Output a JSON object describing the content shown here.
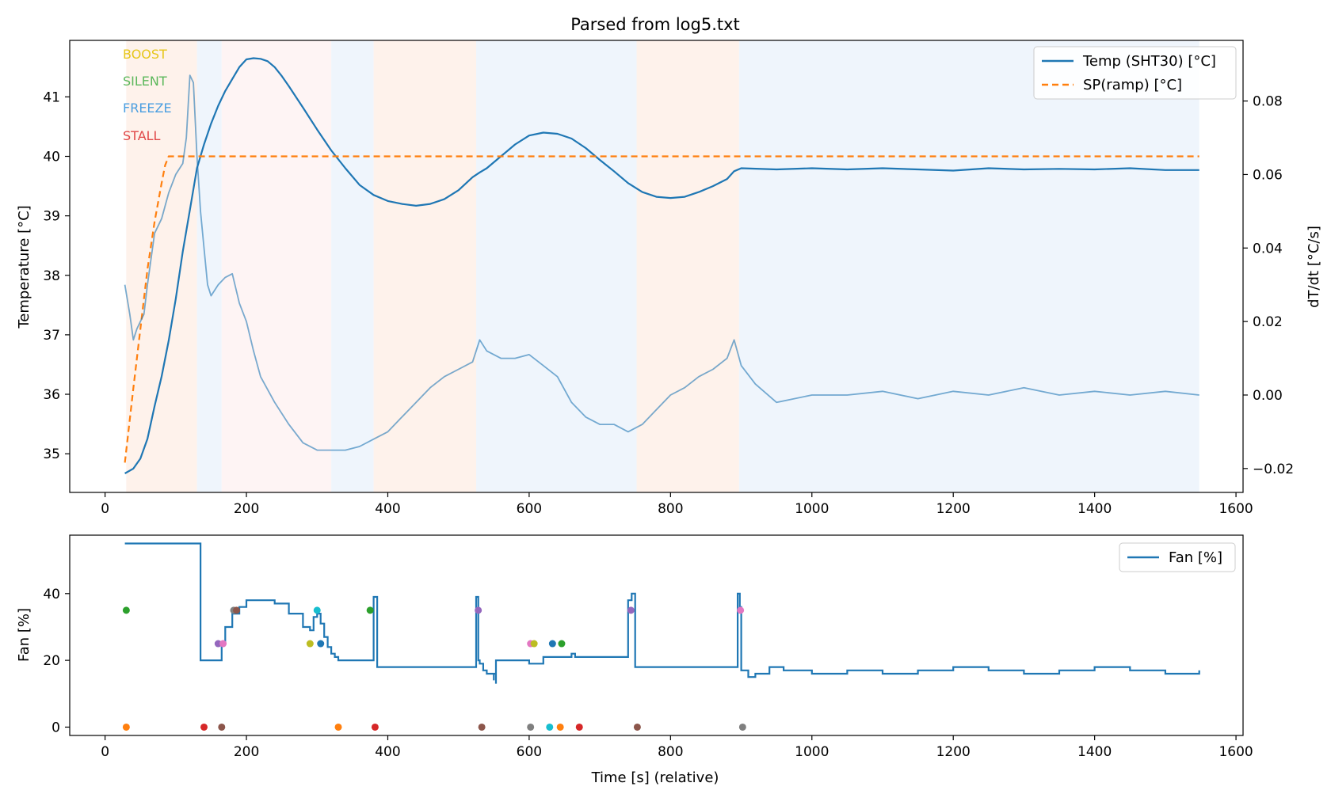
{
  "chart_data": [
    {
      "type": "line",
      "title": "Parsed from log5.txt",
      "ylabel": "Temperature [°C]",
      "y2label": "dT/dt [°C/s]",
      "xlim": [
        -50,
        1610
      ],
      "ylim": [
        34.35,
        41.95
      ],
      "y2lim": [
        -0.0265,
        0.0965
      ],
      "x_ticks": [
        0,
        200,
        400,
        600,
        800,
        1000,
        1200,
        1400,
        1600
      ],
      "y_ticks": [
        35,
        36,
        37,
        38,
        39,
        40,
        41
      ],
      "y2_ticks": [
        -0.02,
        0.0,
        0.02,
        0.04,
        0.06,
        0.08
      ],
      "y2_tick_labels": [
        "−0.02",
        "0.00",
        "0.02",
        "0.04",
        "0.06",
        "0.08"
      ],
      "legend_position": "top-right",
      "mode_labels": [
        {
          "text": "BOOST",
          "color": "#e6c619"
        },
        {
          "text": "SILENT",
          "color": "#5cb85c"
        },
        {
          "text": "FREEZE",
          "color": "#4a9ee0"
        },
        {
          "text": "STALL",
          "color": "#e04848"
        }
      ],
      "mode_bands": [
        {
          "start": 30,
          "end": 130,
          "mode": "BOOST",
          "color": "#fdeee4"
        },
        {
          "start": 130,
          "end": 165,
          "mode": "FREEZE",
          "color": "#e9f1fb"
        },
        {
          "start": 165,
          "end": 320,
          "mode": "STALL",
          "color": "#fdf0f0"
        },
        {
          "start": 320,
          "end": 380,
          "mode": "FREEZE",
          "color": "#e9f1fb"
        },
        {
          "start": 380,
          "end": 525,
          "mode": "BOOST",
          "color": "#fdeee4"
        },
        {
          "start": 525,
          "end": 752,
          "mode": "FREEZE",
          "color": "#e9f1fb"
        },
        {
          "start": 752,
          "end": 897,
          "mode": "BOOST",
          "color": "#fdeee4"
        },
        {
          "start": 897,
          "end": 1548,
          "mode": "FREEZE",
          "color": "#e9f1fb"
        }
      ],
      "series": [
        {
          "name": "Temp (SHT30) [°C]",
          "axis": "left",
          "color": "#1f77b4",
          "style": "solid",
          "x": [
            28,
            40,
            50,
            60,
            70,
            80,
            90,
            100,
            110,
            120,
            130,
            140,
            150,
            160,
            170,
            180,
            190,
            200,
            210,
            220,
            230,
            240,
            250,
            260,
            280,
            300,
            320,
            340,
            360,
            380,
            400,
            420,
            440,
            460,
            480,
            500,
            520,
            530,
            540,
            560,
            580,
            600,
            620,
            640,
            660,
            680,
            700,
            720,
            740,
            760,
            780,
            800,
            820,
            840,
            860,
            880,
            890,
            900,
            950,
            1000,
            1050,
            1100,
            1150,
            1200,
            1250,
            1300,
            1350,
            1400,
            1450,
            1500,
            1548
          ],
          "y": [
            34.67,
            34.75,
            34.92,
            35.25,
            35.8,
            36.3,
            36.9,
            37.6,
            38.4,
            39.1,
            39.8,
            40.2,
            40.55,
            40.85,
            41.1,
            41.3,
            41.5,
            41.63,
            41.65,
            41.64,
            41.6,
            41.5,
            41.35,
            41.18,
            40.82,
            40.45,
            40.1,
            39.8,
            39.52,
            39.35,
            39.25,
            39.2,
            39.17,
            39.2,
            39.28,
            39.43,
            39.65,
            39.73,
            39.8,
            40.0,
            40.2,
            40.35,
            40.4,
            40.38,
            40.3,
            40.14,
            39.94,
            39.75,
            39.55,
            39.4,
            39.32,
            39.3,
            39.32,
            39.4,
            39.5,
            39.62,
            39.75,
            39.8,
            39.78,
            39.8,
            39.78,
            39.8,
            39.78,
            39.76,
            39.8,
            39.78,
            39.79,
            39.78,
            39.8,
            39.77,
            39.77
          ]
        },
        {
          "name": "SP(ramp) [°C]",
          "axis": "left",
          "color": "#ff7f0e",
          "style": "dashed",
          "x": [
            28,
            40,
            50,
            60,
            70,
            80,
            85,
            90,
            100,
            200,
            400,
            600,
            800,
            1000,
            1200,
            1400,
            1548
          ],
          "y": [
            34.85,
            36.1,
            37.1,
            38.1,
            38.9,
            39.55,
            39.85,
            40.0,
            40.0,
            40.0,
            40.0,
            40.0,
            40.0,
            40.0,
            40.0,
            40.0,
            40.0
          ]
        },
        {
          "name": "dT/dt",
          "axis": "right",
          "color": "#1f77b4",
          "opacity": 0.6,
          "style": "solid",
          "x": [
            28,
            35,
            40,
            45,
            50,
            55,
            60,
            70,
            80,
            90,
            100,
            110,
            115,
            120,
            125,
            130,
            135,
            140,
            145,
            150,
            160,
            170,
            180,
            190,
            200,
            210,
            220,
            240,
            260,
            280,
            300,
            320,
            340,
            360,
            380,
            400,
            420,
            440,
            460,
            480,
            500,
            520,
            530,
            540,
            560,
            580,
            600,
            620,
            640,
            660,
            680,
            700,
            720,
            740,
            760,
            780,
            800,
            820,
            840,
            860,
            880,
            890,
            900,
            920,
            950,
            1000,
            1050,
            1100,
            1150,
            1200,
            1250,
            1300,
            1350,
            1400,
            1450,
            1500,
            1548
          ],
          "y": [
            0.03,
            0.022,
            0.015,
            0.018,
            0.02,
            0.022,
            0.03,
            0.044,
            0.048,
            0.055,
            0.06,
            0.063,
            0.07,
            0.087,
            0.085,
            0.065,
            0.05,
            0.04,
            0.03,
            0.027,
            0.03,
            0.032,
            0.033,
            0.025,
            0.02,
            0.012,
            0.005,
            -0.002,
            -0.008,
            -0.013,
            -0.015,
            -0.015,
            -0.015,
            -0.014,
            -0.012,
            -0.01,
            -0.006,
            -0.002,
            0.002,
            0.005,
            0.007,
            0.009,
            0.015,
            0.012,
            0.01,
            0.01,
            0.011,
            0.008,
            0.005,
            -0.002,
            -0.006,
            -0.008,
            -0.008,
            -0.01,
            -0.008,
            -0.004,
            0.0,
            0.002,
            0.005,
            0.007,
            0.01,
            0.015,
            0.008,
            0.003,
            -0.002,
            0.0,
            0.0,
            0.001,
            -0.001,
            0.001,
            0.0,
            0.002,
            0.0,
            0.001,
            0.0,
            0.001,
            0.0
          ]
        }
      ]
    },
    {
      "type": "line",
      "ylabel": "Fan [%]",
      "xlabel": "Time [s] (relative)",
      "xlim": [
        -50,
        1610
      ],
      "ylim": [
        -2.5,
        57.5
      ],
      "x_ticks": [
        0,
        200,
        400,
        600,
        800,
        1000,
        1200,
        1400,
        1600
      ],
      "y_ticks": [
        0,
        20,
        40
      ],
      "legend_position": "top-right",
      "series": [
        {
          "name": "Fan [%]",
          "color": "#1f77b4",
          "style": "step",
          "x": [
            28,
            135,
            135,
            160,
            165,
            170,
            180,
            190,
            200,
            220,
            240,
            260,
            280,
            290,
            295,
            300,
            305,
            310,
            315,
            320,
            325,
            330,
            380,
            380,
            385,
            525,
            525,
            528,
            530,
            535,
            540,
            550,
            550,
            553,
            553,
            555,
            555,
            595,
            600,
            620,
            650,
            660,
            665,
            735,
            740,
            745,
            750,
            750,
            895,
            895,
            898,
            900,
            910,
            920,
            940,
            960,
            1000,
            1050,
            1100,
            1150,
            1200,
            1250,
            1300,
            1350,
            1400,
            1450,
            1500,
            1548
          ],
          "y": [
            55,
            55,
            20,
            20,
            25,
            30,
            34,
            36,
            38,
            38,
            37,
            34,
            30,
            29,
            33,
            34,
            31,
            27,
            24,
            22,
            21,
            20,
            20,
            39,
            18,
            18,
            39,
            20,
            19,
            17,
            16,
            14,
            16,
            13,
            20,
            20,
            20,
            20,
            19,
            21,
            21,
            22,
            21,
            21,
            38,
            40,
            40,
            18,
            18,
            40,
            36,
            17,
            15,
            16,
            18,
            17,
            16,
            17,
            16,
            17,
            18,
            17,
            16,
            17,
            18,
            17,
            16,
            17
          ]
        }
      ],
      "event_markers": [
        {
          "x": 30,
          "y": 35,
          "color": "#2ca02c"
        },
        {
          "x": 160,
          "y": 25,
          "color": "#9467bd"
        },
        {
          "x": 167,
          "y": 25,
          "color": "#e377c2"
        },
        {
          "x": 182,
          "y": 35,
          "color": "#7f7f7f"
        },
        {
          "x": 186,
          "y": 35,
          "color": "#8c564b"
        },
        {
          "x": 290,
          "y": 25,
          "color": "#bcbd22"
        },
        {
          "x": 300,
          "y": 35,
          "color": "#17becf"
        },
        {
          "x": 305,
          "y": 25,
          "color": "#1f77b4"
        },
        {
          "x": 375,
          "y": 35,
          "color": "#2ca02c"
        },
        {
          "x": 528,
          "y": 35,
          "color": "#9467bd"
        },
        {
          "x": 602,
          "y": 25,
          "color": "#e377c2"
        },
        {
          "x": 607,
          "y": 25,
          "color": "#bcbd22"
        },
        {
          "x": 633,
          "y": 25,
          "color": "#1f77b4"
        },
        {
          "x": 646,
          "y": 25,
          "color": "#2ca02c"
        },
        {
          "x": 744,
          "y": 35,
          "color": "#9467bd"
        },
        {
          "x": 899,
          "y": 35,
          "color": "#e377c2"
        },
        {
          "x": 30,
          "y": 0,
          "color": "#ff7f0e"
        },
        {
          "x": 140,
          "y": 0,
          "color": "#d62728"
        },
        {
          "x": 165,
          "y": 0,
          "color": "#8c564b"
        },
        {
          "x": 330,
          "y": 0,
          "color": "#ff7f0e"
        },
        {
          "x": 382,
          "y": 0,
          "color": "#d62728"
        },
        {
          "x": 533,
          "y": 0,
          "color": "#8c564b"
        },
        {
          "x": 602,
          "y": 0,
          "color": "#7f7f7f"
        },
        {
          "x": 629,
          "y": 0,
          "color": "#17becf"
        },
        {
          "x": 644,
          "y": 0,
          "color": "#ff7f0e"
        },
        {
          "x": 671,
          "y": 0,
          "color": "#d62728"
        },
        {
          "x": 753,
          "y": 0,
          "color": "#8c564b"
        },
        {
          "x": 902,
          "y": 0,
          "color": "#7f7f7f"
        }
      ]
    }
  ]
}
